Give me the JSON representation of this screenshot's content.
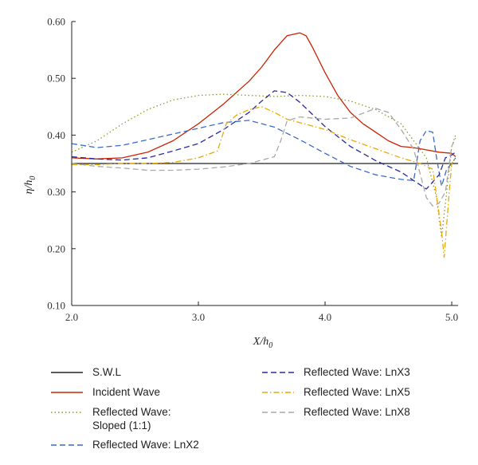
{
  "chart_data": {
    "type": "line",
    "xlabel": "X/h",
    "xlabel_sub": "0",
    "ylabel": "η/h",
    "ylabel_sub": "0",
    "xlim": [
      2.0,
      5.05
    ],
    "ylim": [
      0.1,
      0.6
    ],
    "xticks": [
      2.0,
      3.0,
      4.0,
      5.0
    ],
    "xtick_labels": [
      "2.0",
      "3.0",
      "4.0",
      "5.0"
    ],
    "yticks": [
      0.1,
      0.2,
      0.3,
      0.4,
      0.5,
      0.6
    ],
    "ytick_labels": [
      "0.10",
      "0.20",
      "0.30",
      "0.40",
      "0.50",
      "0.60"
    ],
    "grid": false,
    "legend_placement": "below",
    "series": [
      {
        "name": "S.W.L",
        "color": "#222222",
        "style": "solid",
        "points": [
          [
            2.0,
            0.35
          ],
          [
            5.05,
            0.35
          ]
        ]
      },
      {
        "name": "Incident Wave",
        "color": "#cc2200",
        "style": "solid",
        "points": [
          [
            2.0,
            0.36
          ],
          [
            2.2,
            0.358
          ],
          [
            2.4,
            0.36
          ],
          [
            2.6,
            0.37
          ],
          [
            2.8,
            0.39
          ],
          [
            3.0,
            0.42
          ],
          [
            3.2,
            0.455
          ],
          [
            3.4,
            0.495
          ],
          [
            3.5,
            0.52
          ],
          [
            3.6,
            0.55
          ],
          [
            3.7,
            0.575
          ],
          [
            3.8,
            0.58
          ],
          [
            3.85,
            0.575
          ],
          [
            3.9,
            0.555
          ],
          [
            4.0,
            0.51
          ],
          [
            4.1,
            0.47
          ],
          [
            4.2,
            0.44
          ],
          [
            4.3,
            0.42
          ],
          [
            4.4,
            0.405
          ],
          [
            4.5,
            0.39
          ],
          [
            4.6,
            0.38
          ],
          [
            4.7,
            0.378
          ],
          [
            4.8,
            0.374
          ],
          [
            4.9,
            0.37
          ],
          [
            5.0,
            0.368
          ],
          [
            5.03,
            0.362
          ]
        ]
      },
      {
        "name": "Reflected Wave:\nSloped (1:1)",
        "color": "#8a9a2a",
        "style": "dotted",
        "points": [
          [
            2.0,
            0.37
          ],
          [
            2.2,
            0.39
          ],
          [
            2.4,
            0.42
          ],
          [
            2.6,
            0.445
          ],
          [
            2.8,
            0.462
          ],
          [
            3.0,
            0.47
          ],
          [
            3.2,
            0.472
          ],
          [
            3.4,
            0.47
          ],
          [
            3.6,
            0.468
          ],
          [
            3.8,
            0.47
          ],
          [
            4.0,
            0.468
          ],
          [
            4.2,
            0.46
          ],
          [
            4.4,
            0.445
          ],
          [
            4.6,
            0.42
          ],
          [
            4.7,
            0.39
          ],
          [
            4.8,
            0.36
          ],
          [
            4.88,
            0.29
          ],
          [
            4.92,
            0.22
          ],
          [
            4.96,
            0.3
          ],
          [
            5.0,
            0.38
          ],
          [
            5.03,
            0.4
          ]
        ]
      },
      {
        "name": "Reflected Wave: LnX2",
        "color": "#3a6ac8",
        "style": "dashed",
        "points": [
          [
            2.0,
            0.385
          ],
          [
            2.2,
            0.378
          ],
          [
            2.4,
            0.382
          ],
          [
            2.6,
            0.392
          ],
          [
            2.8,
            0.402
          ],
          [
            3.0,
            0.412
          ],
          [
            3.2,
            0.422
          ],
          [
            3.4,
            0.426
          ],
          [
            3.6,
            0.414
          ],
          [
            3.8,
            0.392
          ],
          [
            4.0,
            0.368
          ],
          [
            4.2,
            0.345
          ],
          [
            4.4,
            0.33
          ],
          [
            4.6,
            0.322
          ],
          [
            4.7,
            0.32
          ],
          [
            4.75,
            0.39
          ],
          [
            4.8,
            0.408
          ],
          [
            4.85,
            0.405
          ],
          [
            4.88,
            0.36
          ],
          [
            4.92,
            0.31
          ],
          [
            4.96,
            0.34
          ],
          [
            5.0,
            0.35
          ],
          [
            5.03,
            0.36
          ]
        ]
      },
      {
        "name": "Reflected Wave: LnX3",
        "color": "#2a2a9a",
        "style": "dashed",
        "points": [
          [
            2.0,
            0.362
          ],
          [
            2.2,
            0.358
          ],
          [
            2.4,
            0.356
          ],
          [
            2.6,
            0.36
          ],
          [
            2.8,
            0.372
          ],
          [
            3.0,
            0.385
          ],
          [
            3.2,
            0.41
          ],
          [
            3.4,
            0.44
          ],
          [
            3.5,
            0.46
          ],
          [
            3.6,
            0.478
          ],
          [
            3.7,
            0.475
          ],
          [
            3.8,
            0.458
          ],
          [
            4.0,
            0.415
          ],
          [
            4.2,
            0.38
          ],
          [
            4.4,
            0.355
          ],
          [
            4.6,
            0.335
          ],
          [
            4.7,
            0.32
          ],
          [
            4.8,
            0.305
          ],
          [
            4.9,
            0.33
          ],
          [
            4.95,
            0.36
          ],
          [
            5.0,
            0.365
          ],
          [
            5.03,
            0.37
          ]
        ]
      },
      {
        "name": "Reflected Wave: LnX5",
        "color": "#e8a800",
        "style": "dashdot",
        "points": [
          [
            2.0,
            0.348
          ],
          [
            2.2,
            0.348
          ],
          [
            2.4,
            0.35
          ],
          [
            2.6,
            0.35
          ],
          [
            2.8,
            0.352
          ],
          [
            3.0,
            0.36
          ],
          [
            3.15,
            0.372
          ],
          [
            3.22,
            0.42
          ],
          [
            3.3,
            0.435
          ],
          [
            3.4,
            0.445
          ],
          [
            3.5,
            0.45
          ],
          [
            3.6,
            0.44
          ],
          [
            3.7,
            0.428
          ],
          [
            3.8,
            0.422
          ],
          [
            4.0,
            0.41
          ],
          [
            4.2,
            0.392
          ],
          [
            4.4,
            0.376
          ],
          [
            4.6,
            0.36
          ],
          [
            4.75,
            0.35
          ],
          [
            4.85,
            0.34
          ],
          [
            4.92,
            0.23
          ],
          [
            4.94,
            0.185
          ],
          [
            4.98,
            0.3
          ],
          [
            5.0,
            0.35
          ],
          [
            5.03,
            0.36
          ]
        ]
      },
      {
        "name": "Reflected Wave: LnX8",
        "color": "#a8a8a8",
        "style": "dashed",
        "points": [
          [
            2.0,
            0.35
          ],
          [
            2.2,
            0.345
          ],
          [
            2.4,
            0.342
          ],
          [
            2.6,
            0.338
          ],
          [
            2.8,
            0.338
          ],
          [
            3.0,
            0.34
          ],
          [
            3.2,
            0.344
          ],
          [
            3.4,
            0.35
          ],
          [
            3.6,
            0.362
          ],
          [
            3.65,
            0.39
          ],
          [
            3.7,
            0.425
          ],
          [
            3.8,
            0.432
          ],
          [
            4.0,
            0.428
          ],
          [
            4.2,
            0.43
          ],
          [
            4.4,
            0.447
          ],
          [
            4.5,
            0.44
          ],
          [
            4.6,
            0.41
          ],
          [
            4.7,
            0.375
          ],
          [
            4.8,
            0.29
          ],
          [
            4.85,
            0.275
          ],
          [
            4.9,
            0.28
          ],
          [
            4.95,
            0.3
          ],
          [
            5.0,
            0.38
          ],
          [
            5.03,
            0.395
          ]
        ]
      }
    ]
  },
  "legend": {
    "items": [
      {
        "label": "S.W.L",
        "color": "#222222",
        "style": "solid"
      },
      {
        "label": "Incident Wave",
        "color": "#cc2200",
        "style": "solid"
      },
      {
        "label": "Reflected Wave:\nSloped (1:1)",
        "color": "#8a9a2a",
        "style": "dotted"
      },
      {
        "label": "Reflected Wave: LnX2",
        "color": "#3a6ac8",
        "style": "dashed"
      },
      {
        "label": "Reflected Wave: LnX3",
        "color": "#2a2a9a",
        "style": "dashed"
      },
      {
        "label": "Reflected Wave: LnX5",
        "color": "#e8a800",
        "style": "dashdot"
      },
      {
        "label": "Reflected Wave: LnX8",
        "color": "#a8a8a8",
        "style": "dashed"
      }
    ]
  }
}
